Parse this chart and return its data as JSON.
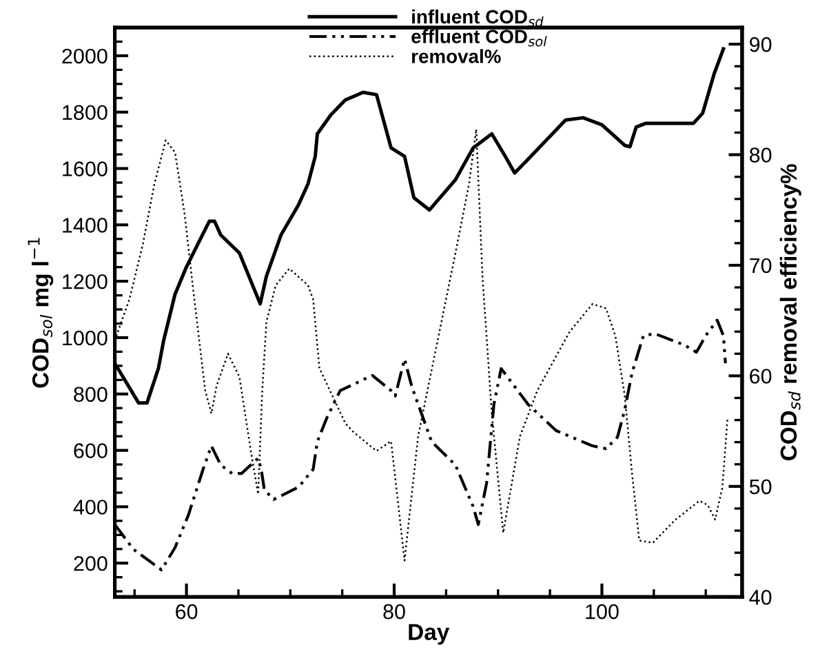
{
  "chart_data": {
    "type": "line",
    "xlabel": "Day",
    "ylabel": "COD$_{sol}$ mg l$^{−1}$",
    "y2label": "COD$_{sd}$ removal efficiency%",
    "xlim": [
      53.1,
      113.5
    ],
    "ylim": [
      80,
      2100
    ],
    "y2lim": [
      40,
      91.5
    ],
    "xticks": [
      {
        "value": 55,
        "label": null
      },
      60,
      {
        "value": 65,
        "label": null
      },
      {
        "value": 70,
        "label": null
      },
      {
        "value": 75,
        "label": null
      },
      80,
      {
        "value": 85,
        "label": null
      },
      {
        "value": 90,
        "label": null
      },
      {
        "value": 95,
        "label": null
      },
      100,
      {
        "value": 105,
        "label": null
      },
      {
        "value": 110,
        "label": null
      }
    ],
    "yticks": [
      {
        "value": 100,
        "label": null
      },
      {
        "value": 150,
        "label": null
      },
      200,
      {
        "value": 250,
        "label": null
      },
      {
        "value": 300,
        "label": null
      },
      {
        "value": 350,
        "label": null
      },
      400,
      {
        "value": 450,
        "label": null
      },
      {
        "value": 500,
        "label": null
      },
      {
        "value": 550,
        "label": null
      },
      600,
      {
        "value": 650,
        "label": null
      },
      {
        "value": 700,
        "label": null
      },
      {
        "value": 750,
        "label": null
      },
      800,
      {
        "value": 850,
        "label": null
      },
      {
        "value": 900,
        "label": null
      },
      {
        "value": 950,
        "label": null
      },
      1000,
      {
        "value": 1050,
        "label": null
      },
      {
        "value": 1100,
        "label": null
      },
      {
        "value": 1150,
        "label": null
      },
      1200,
      {
        "value": 1250,
        "label": null
      },
      {
        "value": 1300,
        "label": null
      },
      {
        "value": 1350,
        "label": null
      },
      1400,
      {
        "value": 1450,
        "label": null
      },
      {
        "value": 1500,
        "label": null
      },
      {
        "value": 1550,
        "label": null
      },
      1600,
      {
        "value": 1650,
        "label": null
      },
      {
        "value": 1700,
        "label": null
      },
      {
        "value": 1750,
        "label": null
      },
      1800,
      {
        "value": 1850,
        "label": null
      },
      {
        "value": 1900,
        "label": null
      },
      {
        "value": 1950,
        "label": null
      },
      2000,
      {
        "value": 2050,
        "label": null
      }
    ],
    "y2ticks": [
      40,
      {
        "value": 42,
        "label": null
      },
      {
        "value": 44,
        "label": null
      },
      {
        "value": 46,
        "label": null
      },
      {
        "value": 48,
        "label": null
      },
      50,
      {
        "value": 52,
        "label": null
      },
      {
        "value": 54,
        "label": null
      },
      {
        "value": 56,
        "label": null
      },
      {
        "value": 58,
        "label": null
      },
      60,
      {
        "value": 62,
        "label": null
      },
      {
        "value": 64,
        "label": null
      },
      {
        "value": 66,
        "label": null
      },
      {
        "value": 68,
        "label": null
      },
      70,
      {
        "value": 72,
        "label": null
      },
      {
        "value": 74,
        "label": null
      },
      {
        "value": 76,
        "label": null
      },
      {
        "value": 78,
        "label": null
      },
      80,
      {
        "value": 82,
        "label": null
      },
      {
        "value": 84,
        "label": null
      },
      {
        "value": 86,
        "label": null
      },
      {
        "value": 88,
        "label": null
      },
      90
    ],
    "grid": false,
    "legend": "top",
    "marker": "none",
    "series": [
      {
        "name": "influent COD$_{sd}$",
        "color": "#000000",
        "line_style": "solid",
        "x": [
          53.1,
          55.4,
          56.2,
          57.3,
          57.8,
          58.9,
          60,
          61.1,
          62.2,
          62.7,
          63.3,
          65.1,
          67.1,
          67.7,
          69.1,
          70.8,
          71.7,
          72.4,
          72.6,
          73.9,
          75.3,
          77,
          78.3,
          79.7,
          81,
          81.9,
          83.4,
          85.9,
          87.6,
          89.4,
          90.7,
          91.6,
          92.9,
          96.5,
          98.2,
          100,
          102.2,
          102.7,
          103.3,
          104.2,
          108.8,
          109.7,
          110.8,
          111.7
        ],
        "values": [
          909,
          768,
          768,
          891,
          989,
          1154,
          1251,
          1332,
          1413,
          1413,
          1364,
          1300,
          1120,
          1218,
          1364,
          1472,
          1545,
          1643,
          1723,
          1790,
          1843,
          1870,
          1862,
          1673,
          1643,
          1496,
          1453,
          1560,
          1673,
          1723,
          1643,
          1584,
          1633,
          1772,
          1780,
          1755,
          1682,
          1677,
          1747,
          1760,
          1760,
          1796,
          1935,
          2024
        ]
      },
      {
        "name": "effluent COD$_{sol}$",
        "color": "#000000",
        "line_style": "dashdot",
        "x": [
          53.1,
          54.9,
          57.6,
          58.9,
          60.2,
          61.6,
          62.4,
          63.3,
          64.4,
          65.3,
          66.9,
          67.2,
          67.5,
          68.4,
          70.8,
          72.2,
          72.6,
          73.5,
          74.8,
          77.9,
          79.7,
          80.1,
          81,
          81.7,
          83.6,
          85.9,
          87.6,
          88.1,
          88.9,
          89.6,
          90.3,
          92.9,
          95.6,
          99.1,
          100.4,
          101.5,
          102.2,
          102.9,
          104,
          105.1,
          108,
          109.1,
          110,
          111.1,
          111.7,
          111.9
        ],
        "values": [
          337,
          249,
          176,
          255,
          372,
          533,
          616,
          548,
          518,
          518,
          572,
          533,
          460,
          426,
          470,
          533,
          631,
          714,
          812,
          866,
          812,
          793,
          924,
          826,
          631,
          548,
          401,
          337,
          484,
          763,
          890,
          763,
          670,
          616,
          606,
          647,
          744,
          875,
          1007,
          1014,
          973,
          948,
          1007,
          1062,
          1007,
          909
        ]
      },
      {
        "name": "removal%",
        "color": "#000000",
        "line_style": "dotted",
        "axis": "y2",
        "x": [
          53.1,
          54.5,
          55.8,
          56.9,
          58,
          58.9,
          59.8,
          60.7,
          61.8,
          62.4,
          62.9,
          64,
          65.1,
          66.2,
          66.9,
          67.3,
          67.7,
          68.6,
          69.9,
          71.7,
          72.2,
          72.8,
          75.3,
          76.1,
          78.3,
          79.7,
          81,
          82.3,
          84.1,
          85.9,
          87.2,
          87.9,
          88.5,
          89.4,
          90.5,
          92.1,
          93.8,
          96.9,
          99.1,
          100.4,
          101.3,
          102.2,
          102.9,
          103.6,
          104.9,
          107.1,
          109.4,
          110.2,
          110.9,
          111.6,
          112.1
        ],
        "values": [
          63.2,
          66.9,
          71.9,
          77.3,
          81.3,
          80.2,
          74.8,
          67.4,
          58.7,
          56.6,
          59.1,
          62,
          59.9,
          53.2,
          49.3,
          58.7,
          64.9,
          68.2,
          69.7,
          68.2,
          66.9,
          60.7,
          55.7,
          54.9,
          53.2,
          54.1,
          43.3,
          54.5,
          62.8,
          71.1,
          77.3,
          82.3,
          69,
          56.6,
          45.8,
          54.5,
          58.7,
          64,
          66.5,
          66.1,
          63.6,
          58.2,
          51.2,
          45.1,
          44.9,
          47,
          48.7,
          48.3,
          47,
          49.9,
          56.2
        ]
      }
    ]
  }
}
